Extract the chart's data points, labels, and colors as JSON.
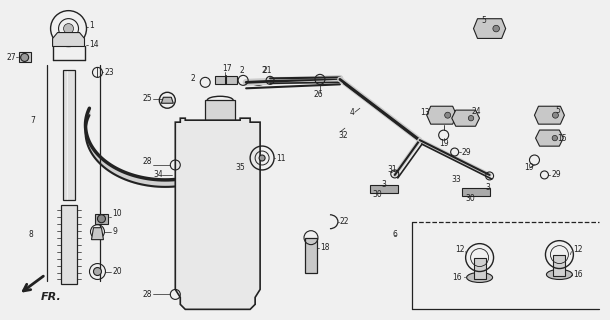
{
  "bg_color": "#f0f0f0",
  "line_color": "#222222",
  "label_color": "#111111",
  "figsize": [
    6.1,
    3.2
  ],
  "dpi": 100,
  "xlim": [
    0,
    610
  ],
  "ylim": [
    0,
    320
  ]
}
